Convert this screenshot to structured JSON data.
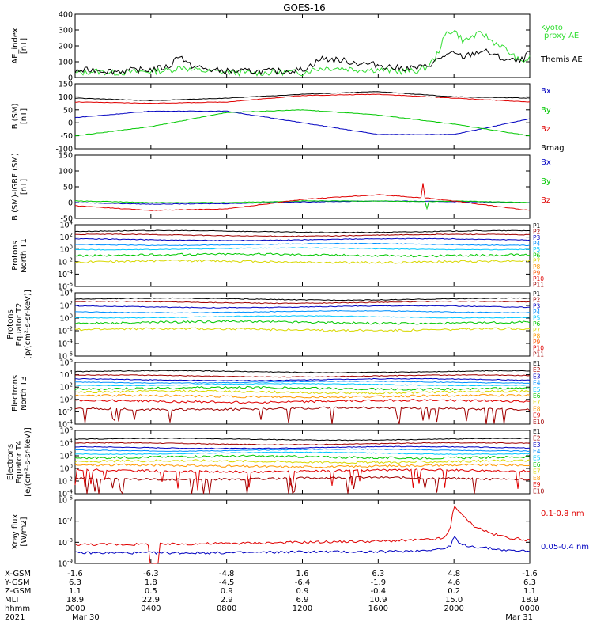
{
  "title": "GOES-16",
  "colors": {
    "black": "#000000",
    "red": "#e00000",
    "green": "#00c800",
    "lime": "#33dd33",
    "blue": "#0000c0",
    "cyan": "#00c8ff",
    "yellow": "#d8d800",
    "orange": "#ff9900",
    "darkred": "#a00000"
  },
  "chart_data": [
    {
      "type": "line",
      "name": "ae",
      "ylabel": "AE_index\n[nT]",
      "ylim": [
        0,
        400
      ],
      "yscale": "linear",
      "yticks": [
        "400",
        "300",
        "200",
        "100",
        "0"
      ],
      "series": [
        {
          "name": "Kyoto\nproxy AE",
          "color": "#33dd33",
          "x": [
            0,
            1,
            2,
            3,
            4,
            5,
            5.4,
            5.8,
            6,
            7,
            8,
            9,
            10,
            11,
            12,
            12.5,
            13,
            14,
            15,
            16,
            17,
            18,
            18.5,
            19,
            19.3,
            19.6,
            20,
            20.5,
            21,
            21.5,
            22,
            22.5,
            23,
            23.5,
            24
          ],
          "y": [
            25,
            40,
            30,
            35,
            40,
            45,
            60,
            70,
            50,
            40,
            35,
            30,
            30,
            35,
            30,
            50,
            60,
            60,
            50,
            50,
            40,
            40,
            60,
            120,
            200,
            280,
            300,
            230,
            260,
            280,
            230,
            200,
            150,
            100,
            120
          ]
        },
        {
          "name": "Themis AE",
          "color": "#000000",
          "x": [
            0,
            1,
            2,
            3,
            4,
            5,
            5.3,
            5.5,
            5.8,
            6,
            7,
            8,
            9,
            10,
            11,
            12,
            12.5,
            13,
            14,
            15,
            16,
            17,
            18,
            18.5,
            19,
            19.5,
            20,
            20.5,
            21,
            21.5,
            22,
            22.5,
            23,
            23.5,
            24
          ],
          "y": [
            40,
            50,
            40,
            45,
            50,
            70,
            120,
            150,
            100,
            80,
            50,
            40,
            40,
            40,
            40,
            50,
            80,
            120,
            110,
            90,
            80,
            60,
            60,
            70,
            100,
            140,
            150,
            130,
            150,
            170,
            150,
            120,
            110,
            100,
            160
          ]
        }
      ]
    },
    {
      "type": "line",
      "name": "bsm",
      "ylabel": "B (SM)\n[nT]",
      "ylim": [
        -100,
        150
      ],
      "yscale": "linear",
      "yticks": [
        "150",
        "100",
        "50",
        "0",
        "-50",
        "-100"
      ],
      "series": [
        {
          "name": "Bx",
          "color": "#0000c0",
          "x": [
            0,
            4,
            8,
            12,
            16,
            20,
            24
          ],
          "y": [
            20,
            45,
            45,
            0,
            -45,
            -45,
            15
          ]
        },
        {
          "name": "By",
          "color": "#00c800",
          "x": [
            0,
            4,
            8,
            12,
            16,
            20,
            24
          ],
          "y": [
            -50,
            -15,
            40,
            50,
            30,
            -5,
            -50
          ]
        },
        {
          "name": "Bz",
          "color": "#e00000",
          "x": [
            0,
            4,
            8,
            12,
            16,
            20,
            24
          ],
          "y": [
            80,
            75,
            80,
            105,
            110,
            95,
            80
          ]
        },
        {
          "name": "Brnag",
          "color": "#000000",
          "x": [
            0,
            4,
            8,
            12,
            16,
            20,
            24
          ],
          "y": [
            95,
            85,
            95,
            110,
            120,
            100,
            95
          ]
        }
      ]
    },
    {
      "type": "line",
      "name": "bsm_igrf",
      "ylabel": "B (SM)-IGRF (SM)\n[nT]",
      "ylim": [
        -50,
        150
      ],
      "yscale": "linear",
      "yticks": [
        "150",
        "100",
        "50",
        "0",
        "-50"
      ],
      "series": [
        {
          "name": "Bx",
          "color": "#0000c0",
          "x": [
            0,
            4,
            8,
            12,
            16,
            20,
            24
          ],
          "y": [
            0,
            -5,
            -3,
            2,
            5,
            3,
            0
          ]
        },
        {
          "name": "By",
          "color": "#00c800",
          "x": [
            0,
            4,
            8,
            12,
            16,
            18.5,
            18.55,
            18.6,
            20,
            24
          ],
          "y": [
            5,
            0,
            0,
            5,
            5,
            3,
            -40,
            3,
            5,
            0
          ]
        },
        {
          "name": "Bz",
          "color": "#e00000",
          "x": [
            0,
            4,
            8,
            12,
            16,
            18.3,
            18.35,
            18.4,
            18.45,
            20,
            24
          ],
          "y": [
            -10,
            -25,
            -20,
            10,
            25,
            15,
            100,
            -30,
            15,
            5,
            -25
          ]
        }
      ]
    },
    {
      "type": "line",
      "name": "protons_t1",
      "ylabel": "Protons\nNorth T1",
      "ylim": [
        -6,
        4
      ],
      "yscale": "log",
      "yticks": [
        "10^4",
        "10^2",
        "10^0",
        "10^-2",
        "10^-4",
        "10^-6"
      ],
      "series": [
        {
          "name": "P1",
          "color": "#000000",
          "level": 2.9
        },
        {
          "name": "P2",
          "color": "#a00000",
          "level": 2.3
        },
        {
          "name": "P3",
          "color": "#0000c0",
          "level": 1.6
        },
        {
          "name": "P4",
          "color": "#0090ff",
          "level": 0.8
        },
        {
          "name": "P5",
          "color": "#00c8ff",
          "level": 0.1
        },
        {
          "name": "P6",
          "color": "#00c800",
          "level": -0.9
        },
        {
          "name": "P7",
          "color": "#d8d800",
          "level": -2.0
        },
        {
          "name": "P8",
          "color": "#ff9900"
        },
        {
          "name": "P9",
          "color": "#ff5500"
        },
        {
          "name": "P10",
          "color": "#e00000"
        },
        {
          "name": "P11",
          "color": "#a00000"
        }
      ]
    },
    {
      "type": "line",
      "name": "protons_t2",
      "ylabel": "Protons\nEquator T2\n[p/(cm²-s-sr-keV)]",
      "ylim": [
        -6,
        4
      ],
      "yscale": "log",
      "yticks": [
        "10^4",
        "10^2",
        "10^0",
        "10^-2",
        "10^-4",
        "10^-6"
      ],
      "series": [
        {
          "name": "P1",
          "color": "#000000",
          "level": 3.0
        },
        {
          "name": "P2",
          "color": "#a00000",
          "level": 2.5
        },
        {
          "name": "P3",
          "color": "#0000c0",
          "level": 1.8
        },
        {
          "name": "P4",
          "color": "#0090ff",
          "level": 1.0
        },
        {
          "name": "P5",
          "color": "#00c8ff",
          "level": 0.2
        },
        {
          "name": "P6",
          "color": "#00c800",
          "level": -0.7
        },
        {
          "name": "P7",
          "color": "#d8d800",
          "level": -1.8
        },
        {
          "name": "P8",
          "color": "#ff9900"
        },
        {
          "name": "P9",
          "color": "#ff5500"
        },
        {
          "name": "P10",
          "color": "#e00000"
        },
        {
          "name": "P11",
          "color": "#a00000"
        }
      ]
    },
    {
      "type": "line",
      "name": "electrons_t3",
      "ylabel": "Electrons\nNorth T3",
      "ylim": [
        -4,
        6
      ],
      "yscale": "log",
      "yticks": [
        "10^6",
        "10^4",
        "10^2",
        "10^0",
        "10^-2",
        "10^-4"
      ],
      "series": [
        {
          "name": "E1",
          "color": "#000000",
          "level": 4.5
        },
        {
          "name": "E2",
          "color": "#a00000",
          "level": 3.8
        },
        {
          "name": "E3",
          "color": "#0000c0",
          "level": 3.2
        },
        {
          "name": "E4",
          "color": "#0090ff",
          "level": 2.8
        },
        {
          "name": "E5",
          "color": "#00c8ff",
          "level": 2.4
        },
        {
          "name": "E6",
          "color": "#00c800",
          "level": 1.8
        },
        {
          "name": "E7",
          "color": "#d8d800",
          "level": 1.2
        },
        {
          "name": "E8",
          "color": "#ff9900",
          "level": 0.5
        },
        {
          "name": "E9",
          "color": "#e00000",
          "level": -0.3
        },
        {
          "name": "E10",
          "color": "#a00000",
          "level": -1.5
        }
      ]
    },
    {
      "type": "line",
      "name": "electrons_t4",
      "ylabel": "Electrons\nEquator T4\n[e/(cm²-s-sr-keV)]",
      "ylim": [
        -4,
        6
      ],
      "yscale": "log",
      "yticks": [
        "10^6",
        "10^4",
        "10^2",
        "10^0",
        "10^-2",
        "10^-4"
      ],
      "series": [
        {
          "name": "E1",
          "color": "#000000",
          "level": 4.6
        },
        {
          "name": "E2",
          "color": "#a00000",
          "level": 3.9
        },
        {
          "name": "E3",
          "color": "#0000c0",
          "level": 3.3
        },
        {
          "name": "E4",
          "color": "#0090ff",
          "level": 2.9
        },
        {
          "name": "E5",
          "color": "#00c8ff",
          "level": 2.4
        },
        {
          "name": "E6",
          "color": "#00c800",
          "level": 1.8
        },
        {
          "name": "E7",
          "color": "#d8d800",
          "level": 1.1
        },
        {
          "name": "E8",
          "color": "#ff9900",
          "level": 0.4
        },
        {
          "name": "E9",
          "color": "#e00000",
          "level": -0.4
        },
        {
          "name": "E10",
          "color": "#a00000",
          "level": -1.6
        }
      ]
    },
    {
      "type": "line",
      "name": "xray",
      "ylabel": "Xray flux\n[W/m2]",
      "ylim": [
        -9,
        -6
      ],
      "yscale": "log",
      "yticks": [
        "10^-6",
        "10^-7",
        "10^-8",
        "10^-9"
      ],
      "series": [
        {
          "name": "0.1-0.8 nm",
          "color": "#e00000",
          "x": [
            0,
            3.9,
            3.95,
            4.4,
            4.45,
            8,
            12,
            16,
            18,
            19,
            19.5,
            19.8,
            20,
            20.3,
            21,
            22,
            23,
            24
          ],
          "y": [
            -8.1,
            -8.1,
            -9.0,
            -9.0,
            -8.1,
            -8.05,
            -8.0,
            -7.95,
            -7.9,
            -7.85,
            -7.8,
            -7.4,
            -6.2,
            -6.6,
            -7.2,
            -7.6,
            -7.8,
            -7.9
          ]
        },
        {
          "name": "0.05-0.4 nm",
          "color": "#0000c0",
          "x": [
            0,
            8,
            12,
            16,
            18,
            19.5,
            19.8,
            20,
            20.3,
            21,
            22,
            23,
            24
          ],
          "y": [
            -8.5,
            -8.5,
            -8.45,
            -8.45,
            -8.4,
            -8.3,
            -8.2,
            -7.7,
            -8.1,
            -8.2,
            -8.3,
            -8.4,
            -8.4
          ]
        }
      ]
    }
  ],
  "x_axis": {
    "hours": [
      0,
      4,
      8,
      12,
      16,
      20,
      24
    ],
    "rows": [
      {
        "label": "X-GSM",
        "values": [
          "-1.6",
          "-6.3",
          "-4.8",
          "1.6",
          "6.3",
          "4.8",
          "-1.6"
        ]
      },
      {
        "label": "Y-GSM",
        "values": [
          "6.3",
          "1.8",
          "-4.5",
          "-6.4",
          "-1.9",
          "4.6",
          "6.3"
        ]
      },
      {
        "label": "Z-GSM",
        "values": [
          "1.1",
          "0.5",
          "0.9",
          "0.9",
          "-0.4",
          "0.2",
          "1.1"
        ]
      },
      {
        "label": "MLT",
        "values": [
          "18.9",
          "22.9",
          "2.9",
          "6.9",
          "10.9",
          "15.0",
          "18.9"
        ]
      },
      {
        "label": "hhmm",
        "values": [
          "0000",
          "0400",
          "0800",
          "1200",
          "1600",
          "2000",
          "0000"
        ]
      }
    ],
    "year": "2021",
    "start_date": "Mar 30",
    "end_date": "Mar 31"
  }
}
